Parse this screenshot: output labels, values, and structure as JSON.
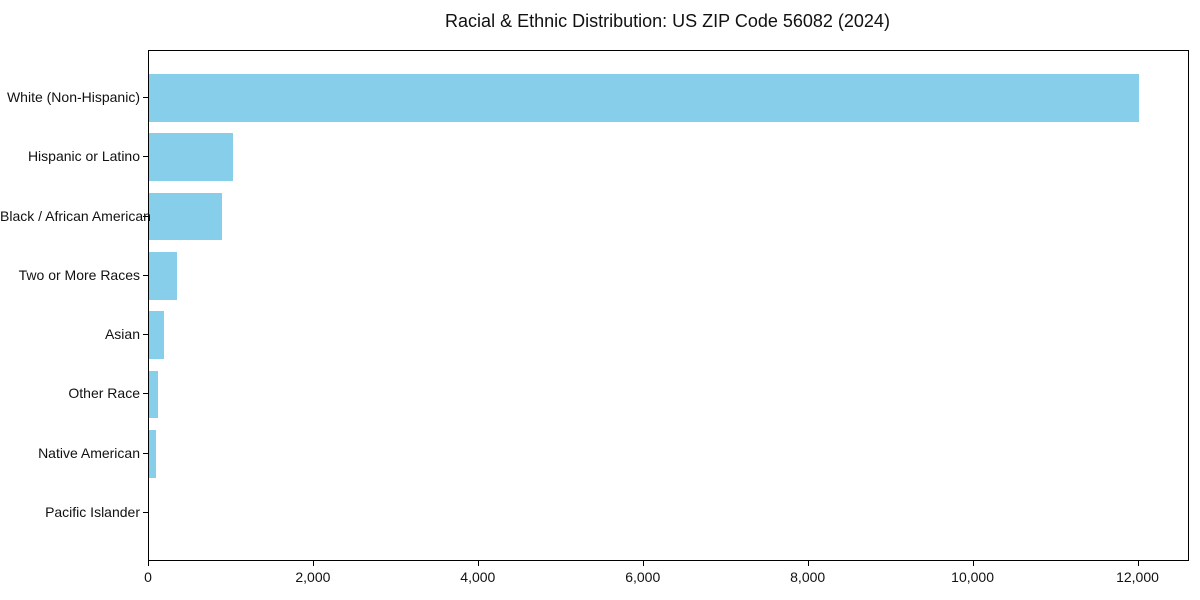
{
  "chart_data": {
    "type": "bar",
    "orientation": "horizontal",
    "title": "Racial & Ethnic Distribution: US ZIP Code 56082 (2024)",
    "categories": [
      "White (Non-Hispanic)",
      "Hispanic or Latino",
      "Black / African American",
      "Two or More Races",
      "Asian",
      "Other Race",
      "Native American",
      "Pacific Islander"
    ],
    "values": [
      12000,
      1020,
      890,
      340,
      180,
      110,
      85,
      0
    ],
    "xlabel": "",
    "ylabel": "",
    "xlim": [
      0,
      12600
    ],
    "xticks": [
      0,
      2000,
      4000,
      6000,
      8000,
      10000,
      12000
    ],
    "xtick_labels": [
      "0",
      "2,000",
      "4,000",
      "6,000",
      "8,000",
      "10,000",
      "12,000"
    ],
    "bar_color": "#87CEEB",
    "spine_color": "#000000",
    "text_color": "#111111",
    "grid": false,
    "legend": "none"
  }
}
